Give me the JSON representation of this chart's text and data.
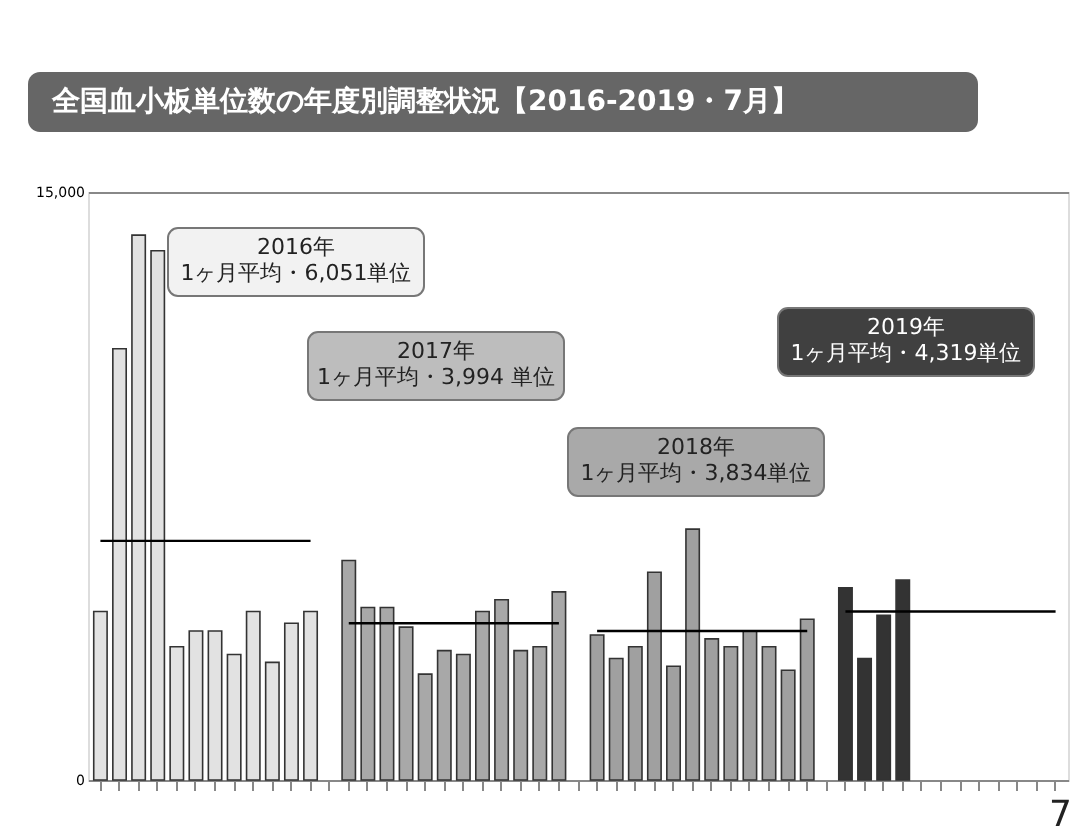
{
  "chart_data": {
    "type": "bar",
    "title": "全国血小板単位数の年度別調整状況【2016-2019・7月】",
    "categories": [
      null,
      null,
      null,
      null,
      null,
      null,
      null,
      null,
      null,
      null,
      null,
      null,
      null,
      null,
      null,
      null,
      null,
      null,
      null,
      null,
      null,
      null,
      null,
      null,
      null,
      null,
      null,
      null,
      null,
      null,
      null,
      null,
      null,
      null,
      null,
      null,
      null,
      null,
      null,
      null,
      null,
      null,
      null,
      null,
      null,
      null,
      null,
      null,
      null,
      null,
      null
    ],
    "series": [
      {
        "color": "#e2e2e2",
        "values": [
          4300,
          11000,
          13900,
          13500,
          3400,
          3800,
          3800,
          3200,
          4300,
          3000,
          4000,
          4300,
          null,
          null,
          null,
          null,
          null,
          null,
          null,
          null,
          null,
          null,
          null,
          null,
          null,
          null,
          null,
          null,
          null,
          null,
          null,
          null,
          null,
          null,
          null,
          null,
          null,
          null,
          null,
          null,
          null,
          null,
          null,
          null,
          null,
          null,
          null,
          null,
          null,
          null,
          null
        ]
      },
      {
        "color": "#a8a8a8",
        "values": [
          null,
          null,
          null,
          null,
          null,
          null,
          null,
          null,
          null,
          null,
          null,
          null,
          null,
          5600,
          4400,
          4400,
          3900,
          2700,
          3300,
          3200,
          4300,
          4600,
          3300,
          3400,
          4800,
          null,
          null,
          null,
          null,
          null,
          null,
          null,
          null,
          null,
          null,
          null,
          null,
          null,
          null,
          null,
          null,
          null,
          null,
          null,
          null,
          null,
          null,
          null,
          null,
          null,
          null
        ]
      },
      {
        "color": "#a0a0a0",
        "values": [
          null,
          null,
          null,
          null,
          null,
          null,
          null,
          null,
          null,
          null,
          null,
          null,
          null,
          null,
          null,
          null,
          null,
          null,
          null,
          null,
          null,
          null,
          null,
          null,
          null,
          null,
          3700,
          3100,
          3400,
          5300,
          2900,
          6400,
          3600,
          3400,
          3800,
          3400,
          2800,
          4100,
          null,
          null,
          null,
          null,
          null,
          null,
          null,
          null,
          null,
          null,
          null,
          null,
          null
        ]
      },
      {
        "color": "#333333",
        "values": [
          null,
          null,
          null,
          null,
          null,
          null,
          null,
          null,
          null,
          null,
          null,
          null,
          null,
          null,
          null,
          null,
          null,
          null,
          null,
          null,
          null,
          null,
          null,
          null,
          null,
          null,
          null,
          null,
          null,
          null,
          null,
          null,
          null,
          null,
          null,
          null,
          null,
          null,
          null,
          4900,
          3100,
          4200,
          5100,
          null,
          null,
          null,
          null,
          null,
          null,
          null,
          null
        ]
      },
      {
        "type": "line",
        "color": "#000000",
        "values": [
          6100,
          6100,
          6100,
          6100,
          6100,
          6100,
          6100,
          6100,
          6100,
          6100,
          6100,
          6100,
          null,
          null,
          null,
          null,
          null,
          null,
          null,
          null,
          null,
          null,
          null,
          null,
          null,
          null,
          null,
          null,
          null,
          null,
          null,
          null,
          null,
          null,
          null,
          null,
          null,
          null,
          null,
          null,
          null,
          null,
          null,
          null,
          null,
          null,
          null,
          null,
          null,
          null,
          null
        ]
      },
      {
        "type": "line",
        "color": "#000000",
        "values": [
          null,
          null,
          null,
          null,
          null,
          null,
          null,
          null,
          null,
          null,
          null,
          null,
          null,
          4000,
          4000,
          4000,
          4000,
          4000,
          4000,
          4000,
          4000,
          4000,
          4000,
          4000,
          4000,
          null,
          null,
          null,
          null,
          null,
          null,
          null,
          null,
          null,
          null,
          null,
          null,
          null,
          null,
          null,
          null,
          null,
          null,
          null,
          null,
          null,
          null,
          null,
          null,
          null,
          null
        ]
      },
      {
        "type": "line",
        "color": "#000000",
        "values": [
          null,
          null,
          null,
          null,
          null,
          null,
          null,
          null,
          null,
          null,
          null,
          null,
          null,
          null,
          null,
          null,
          null,
          null,
          null,
          null,
          null,
          null,
          null,
          null,
          null,
          null,
          3800,
          3800,
          3800,
          3800,
          3800,
          3800,
          3800,
          3800,
          3800,
          3800,
          3800,
          3800,
          null,
          null,
          null,
          null,
          null,
          null,
          null,
          null,
          null,
          null,
          null,
          null,
          null
        ]
      },
      {
        "type": "line",
        "color": "#000000",
        "values": [
          null,
          null,
          null,
          null,
          null,
          null,
          null,
          null,
          null,
          null,
          null,
          null,
          null,
          null,
          null,
          null,
          null,
          null,
          null,
          null,
          null,
          null,
          null,
          null,
          null,
          null,
          null,
          null,
          null,
          null,
          null,
          null,
          null,
          null,
          null,
          null,
          null,
          null,
          null,
          4300,
          4300,
          4300,
          4300,
          4300,
          4300,
          4300,
          4300,
          4300,
          4300,
          4300,
          4300
        ]
      }
    ],
    "ylim": [
      0,
      15000
    ],
    "yticks": [
      0,
      {
        "value": 15000,
        "label": "15,000"
      }
    ],
    "grid": "y",
    "tick_labels": "y",
    "annotations": [
      "2016年\n1ヶ月平均・6,051単位",
      "2017年\n1ヶ月平均・3,994 単位",
      "2018年\n1ヶ月平均・3,834単位",
      "2019年\n1ヶ月平均・4,319単位",
      "7"
    ]
  }
}
